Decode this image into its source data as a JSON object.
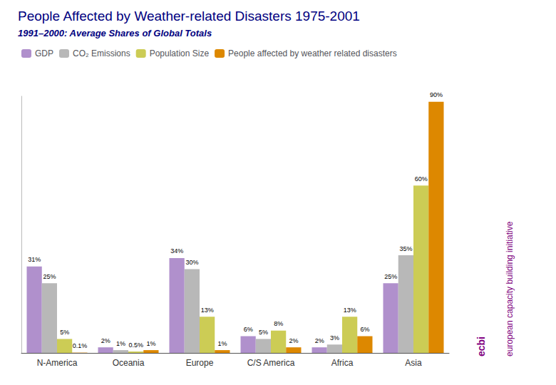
{
  "chart_data": {
    "type": "bar",
    "title": "People Affected by Weather-related Disasters 1975-2001",
    "subtitle": "1991–2000: Average Shares of Global Totals",
    "categories": [
      "N-America",
      "Oceania",
      "Europe",
      "C/S America",
      "Africa",
      "Asia"
    ],
    "series": [
      {
        "name": "GDP",
        "color": "#b090cc",
        "values": [
          31,
          2,
          34,
          6,
          2,
          25
        ],
        "value_labels": [
          "31%",
          "2%",
          "34%",
          "6%",
          "2%",
          "25%"
        ]
      },
      {
        "name": "CO₂ Emissions",
        "color": "#b8b8b8",
        "values": [
          25,
          1,
          30,
          5,
          3,
          35
        ],
        "value_labels": [
          "25%",
          "1%",
          "30%",
          "5%",
          "3%",
          "35%"
        ]
      },
      {
        "name": "Population Size",
        "color": "#cccc55",
        "values": [
          5,
          0.5,
          13,
          8,
          13,
          60
        ],
        "value_labels": [
          "5%",
          "0.5%",
          "13%",
          "8%",
          "13%",
          "60%"
        ]
      },
      {
        "name": "People affected by weather related disasters",
        "color": "#dd8800",
        "values": [
          0.1,
          1,
          1,
          2,
          6,
          90
        ],
        "value_labels": [
          "0.1%",
          "1%",
          "1%",
          "2%",
          "6%",
          "90%"
        ]
      }
    ],
    "ylim": [
      0,
      92
    ],
    "grid": false,
    "legend": "upper left",
    "data_labels": true,
    "tick_labels": "x",
    "annotations": [
      {
        "text": "ecbi",
        "color": "#800080"
      },
      {
        "text": "european capacity building initiative",
        "color": "#800080"
      }
    ]
  }
}
